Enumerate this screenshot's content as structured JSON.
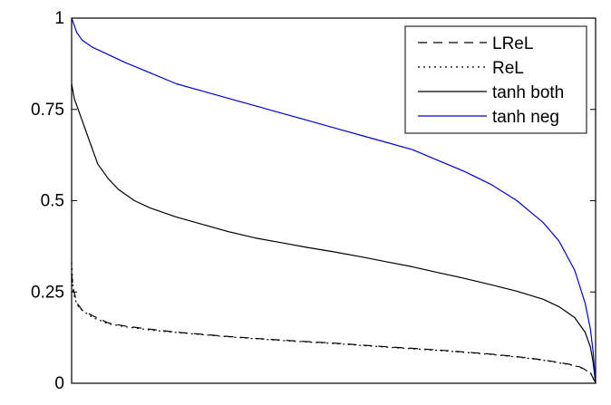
{
  "chart_data": {
    "type": "line",
    "title": "",
    "xlabel": "",
    "ylabel": "",
    "xlim": [
      0,
      1
    ],
    "ylim": [
      0,
      1
    ],
    "yticks": [
      {
        "value": 0,
        "label": "0"
      },
      {
        "value": 0.25,
        "label": "0.25"
      },
      {
        "value": 0.5,
        "label": "0.5"
      },
      {
        "value": 0.75,
        "label": "0.75"
      },
      {
        "value": 1,
        "label": "1"
      }
    ],
    "grid": false,
    "legend_position": "top-right",
    "series": [
      {
        "name": "LReL",
        "color": "#000000",
        "dash": "dashed",
        "x": [
          0,
          0.003,
          0.01,
          0.02,
          0.04,
          0.07,
          0.1,
          0.15,
          0.2,
          0.3,
          0.4,
          0.5,
          0.6,
          0.7,
          0.8,
          0.85,
          0.9,
          0.95,
          0.97,
          0.99,
          1
        ],
        "y": [
          0.3,
          0.26,
          0.22,
          0.2,
          0.185,
          0.165,
          0.157,
          0.148,
          0.14,
          0.128,
          0.118,
          0.11,
          0.1,
          0.091,
          0.08,
          0.073,
          0.064,
          0.052,
          0.045,
          0.03,
          0.0
        ]
      },
      {
        "name": "ReL",
        "color": "#000000",
        "dash": "dotted",
        "x": [
          0,
          0.003,
          0.01,
          0.02,
          0.04,
          0.07,
          0.1,
          0.15,
          0.2,
          0.3,
          0.4,
          0.5,
          0.6,
          0.7,
          0.8,
          0.85,
          0.9,
          0.95,
          0.97,
          0.99,
          1
        ],
        "y": [
          0.33,
          0.25,
          0.215,
          0.2,
          0.18,
          0.163,
          0.155,
          0.146,
          0.139,
          0.127,
          0.117,
          0.109,
          0.099,
          0.09,
          0.079,
          0.072,
          0.063,
          0.051,
          0.044,
          0.029,
          0.0
        ]
      },
      {
        "name": "tanh both",
        "color": "#000000",
        "dash": "solid",
        "x": [
          0,
          0.005,
          0.015,
          0.03,
          0.05,
          0.07,
          0.09,
          0.12,
          0.15,
          0.2,
          0.25,
          0.3,
          0.35,
          0.4,
          0.45,
          0.5,
          0.55,
          0.6,
          0.65,
          0.7,
          0.75,
          0.8,
          0.85,
          0.9,
          0.93,
          0.96,
          0.98,
          0.99,
          0.995,
          1
        ],
        "y": [
          0.82,
          0.78,
          0.74,
          0.68,
          0.6,
          0.56,
          0.53,
          0.5,
          0.48,
          0.455,
          0.435,
          0.415,
          0.398,
          0.385,
          0.372,
          0.36,
          0.347,
          0.333,
          0.319,
          0.303,
          0.287,
          0.27,
          0.252,
          0.23,
          0.21,
          0.18,
          0.14,
          0.1,
          0.06,
          0.0
        ]
      },
      {
        "name": "tanh neg",
        "color": "#0000cc",
        "dash": "solid",
        "x": [
          0,
          0.005,
          0.01,
          0.02,
          0.04,
          0.07,
          0.1,
          0.15,
          0.2,
          0.25,
          0.3,
          0.35,
          0.4,
          0.45,
          0.5,
          0.55,
          0.6,
          0.65,
          0.7,
          0.75,
          0.8,
          0.85,
          0.9,
          0.93,
          0.96,
          0.98,
          0.99,
          0.995,
          1
        ],
        "y": [
          1.0,
          0.98,
          0.96,
          0.94,
          0.92,
          0.9,
          0.88,
          0.85,
          0.82,
          0.8,
          0.78,
          0.76,
          0.74,
          0.72,
          0.7,
          0.68,
          0.66,
          0.64,
          0.61,
          0.58,
          0.545,
          0.5,
          0.44,
          0.39,
          0.31,
          0.22,
          0.15,
          0.09,
          0.0
        ]
      }
    ]
  }
}
